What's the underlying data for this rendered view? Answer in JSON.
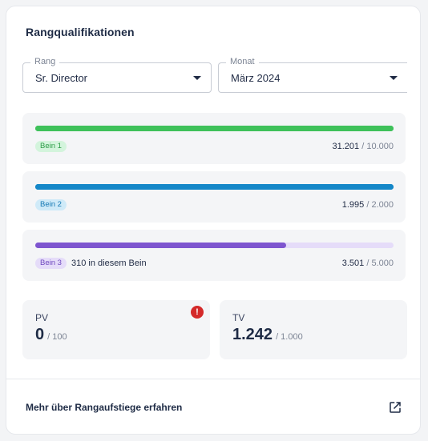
{
  "card": {
    "title": "Rangqualifikationen"
  },
  "filters": {
    "rank": {
      "legend": "Rang",
      "value": "Sr. Director"
    },
    "month": {
      "legend": "Monat",
      "value": "März 2024"
    }
  },
  "legs": [
    {
      "badge": "Bein 1",
      "note": "",
      "current": "31.201",
      "separator": "/",
      "goal": "10.000",
      "progress": 1.0,
      "color": "#3ec15a",
      "track_color": "#3ec15a",
      "badge_bg": "#d3f4dc",
      "badge_fg": "#2e9d48"
    },
    {
      "badge": "Bein 2",
      "note": "",
      "current": "1.995",
      "separator": "/",
      "goal": "2.000",
      "progress": 1.0,
      "color": "#1487c8",
      "track_color": "#1487c8",
      "badge_bg": "#cfeaf8",
      "badge_fg": "#1579b4"
    },
    {
      "badge": "Bein 3",
      "note": "310 in diesem Bein",
      "current": "3.501",
      "separator": "/",
      "goal": "5.000",
      "progress": 0.7,
      "color": "#7e55cf",
      "track_color": "#e5dcf9",
      "badge_bg": "#e5dcf9",
      "badge_fg": "#6f49bf"
    }
  ],
  "stats": {
    "pv": {
      "label": "PV",
      "value": "0",
      "goal": "/ 100",
      "alert_icon": "error-icon",
      "alert_glyph": "!",
      "alert_color": "#d42a2a"
    },
    "tv": {
      "label": "TV",
      "value": "1.242",
      "goal": "/ 1.000"
    }
  },
  "footer": {
    "link": "Mehr über Rangaufstiege erfahren",
    "icon": "external-link-icon"
  }
}
